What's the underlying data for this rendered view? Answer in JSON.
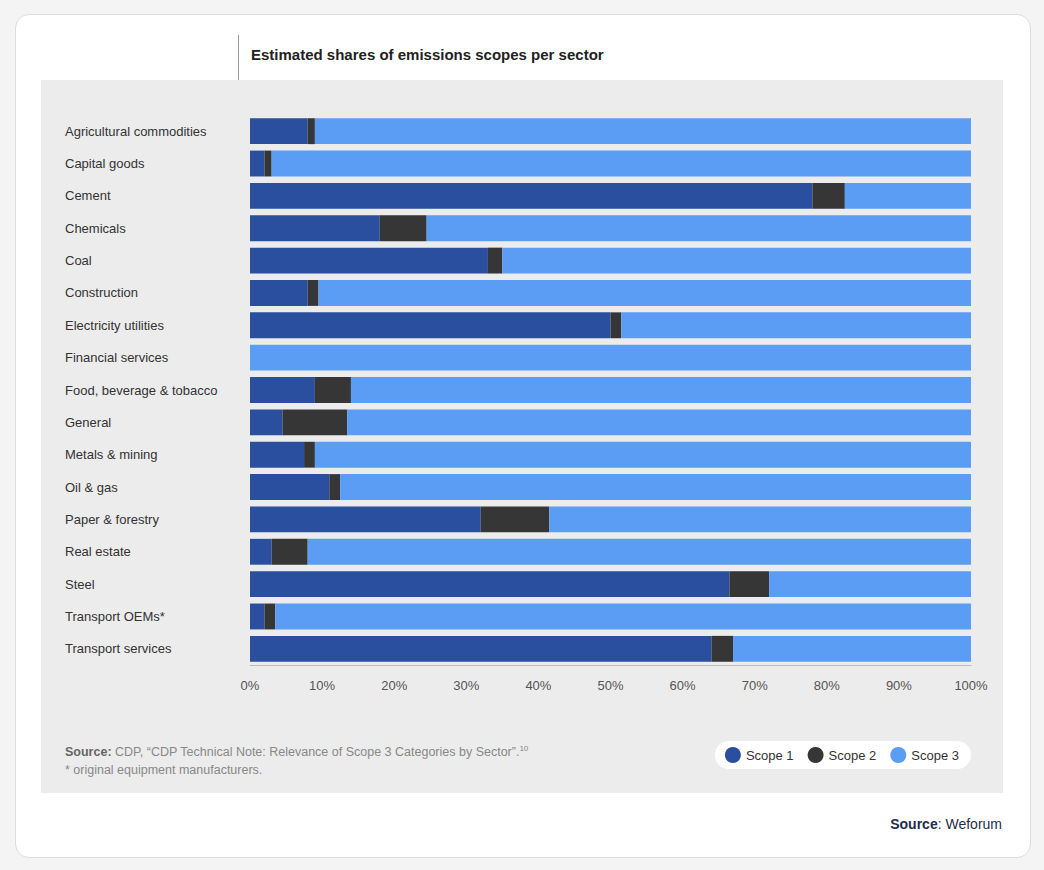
{
  "chart_data": {
    "type": "bar",
    "title": "Estimated shares of emissions scopes per sector",
    "orientation": "horizontal",
    "stacked": true,
    "grid": false,
    "legend": "lower right",
    "data_labels": false,
    "categories": [
      "Agricultural commodities",
      "Capital goods",
      "Cement",
      "Chemicals",
      "Coal",
      "Construction",
      "Electricity utilities",
      "Financial services",
      "Food, beverage & tobacco",
      "General",
      "Metals & mining",
      "Oil & gas",
      "Paper & forestry",
      "Real estate",
      "Steel",
      "Transport OEMs*",
      "Transport services"
    ],
    "series": [
      {
        "name": "Scope 1",
        "color": "#2a4f9e",
        "values": [
          8,
          2,
          78,
          18,
          33,
          8,
          50,
          0,
          9,
          4.5,
          7.5,
          11,
          32,
          3,
          66.5,
          2,
          64
        ]
      },
      {
        "name": "Scope 2",
        "color": "#363636",
        "values": [
          1,
          1,
          4.5,
          6.5,
          2,
          1.5,
          1.5,
          0,
          5,
          9,
          1.5,
          1.5,
          9.5,
          5,
          5.5,
          1.5,
          3
        ]
      },
      {
        "name": "Scope 3",
        "color": "#5b9cf5",
        "values": [
          91,
          97,
          17.5,
          75.5,
          65,
          90.5,
          48.5,
          100,
          86,
          86.5,
          91,
          87.5,
          58.5,
          92,
          28,
          96.5,
          33
        ]
      }
    ],
    "xlim": [
      0,
      100
    ],
    "xticks": [
      {
        "value": 0,
        "label": "0%"
      },
      {
        "value": 10,
        "label": "10%"
      },
      {
        "value": 20,
        "label": "20%"
      },
      {
        "value": 30,
        "label": "30%"
      },
      {
        "value": 40,
        "label": "40%"
      },
      {
        "value": 50,
        "label": "50%"
      },
      {
        "value": 60,
        "label": "60%"
      },
      {
        "value": 70,
        "label": "70%"
      },
      {
        "value": 80,
        "label": "80%"
      },
      {
        "value": 90,
        "label": "90%"
      },
      {
        "value": 100,
        "label": "100%"
      }
    ]
  },
  "notes": {
    "source_label": "Source:",
    "source_text": "CDP, “CDP Technical Note: Relevance of Scope 3 Categories by Sector”.",
    "source_ref": "10",
    "footnote": "* original equipment manufacturers.",
    "credit_label": "Source",
    "credit_text": ": Weforum"
  }
}
